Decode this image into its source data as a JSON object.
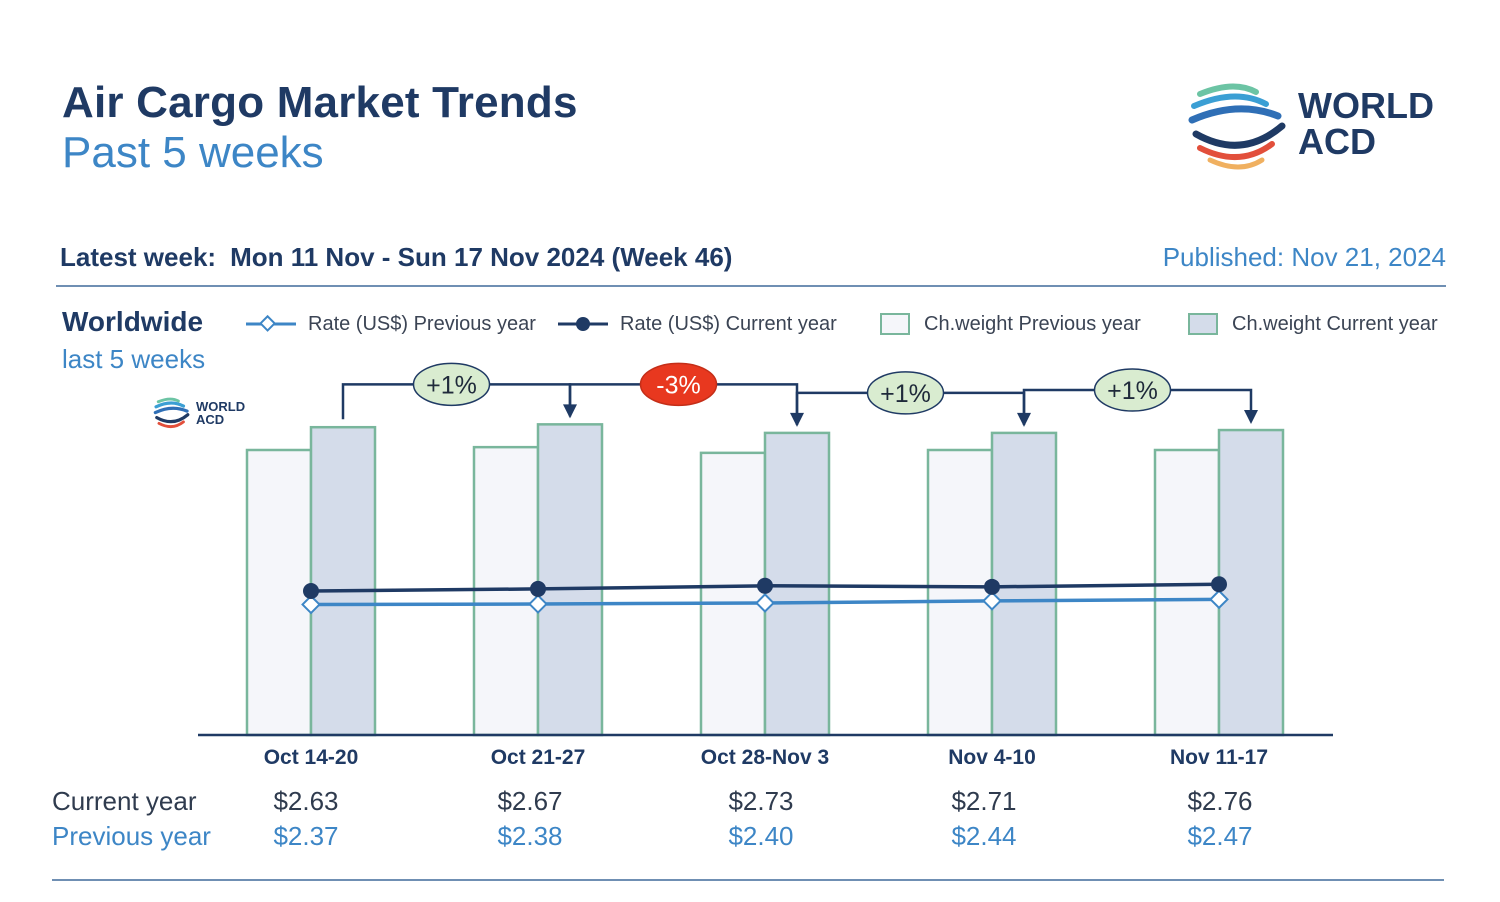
{
  "header": {
    "title": "Air Cargo Market Trends",
    "subtitle": "Past 5 weeks",
    "logo_text_line1": "WORLD",
    "logo_text_line2": "ACD"
  },
  "week_bar": {
    "latest_label": "Latest week:",
    "latest_range": "Mon 11 Nov - Sun 17 Nov 2024 (Week 46)",
    "published": "Published: Nov 21, 2024"
  },
  "section": {
    "region": "Worldwide",
    "period": "last 5 weeks"
  },
  "legend": {
    "rate_prev": "Rate (US$) Previous year",
    "rate_curr": "Rate (US$) Current year",
    "weight_prev": "Ch.weight Previous year",
    "weight_curr": "Ch.weight Current year"
  },
  "colors": {
    "navy": "#1f3a64",
    "blue": "#3d86c6",
    "bar_border": "#79b69c",
    "bar_prev_fill": "#f5f6fa",
    "bar_curr_fill": "#d4dcea",
    "badge_up": "#d9ecd0",
    "badge_down": "#e8381f"
  },
  "chart_data": {
    "type": "bar",
    "categories": [
      "Oct 14-20",
      "Oct 21-27",
      "Oct 28-Nov 3",
      "Nov 4-10",
      "Nov 11-17"
    ],
    "series": [
      {
        "name": "Ch.weight Previous year",
        "kind": "bar",
        "values": [
          1.0,
          1.01,
          0.99,
          1.0,
          1.0
        ]
      },
      {
        "name": "Ch.weight Current year",
        "kind": "bar",
        "values": [
          1.08,
          1.09,
          1.06,
          1.06,
          1.07
        ]
      },
      {
        "name": "Rate (US$) Current year",
        "kind": "line",
        "values": [
          2.63,
          2.67,
          2.73,
          2.71,
          2.76
        ]
      },
      {
        "name": "Rate (US$) Previous year",
        "kind": "line",
        "values": [
          2.37,
          2.38,
          2.4,
          2.44,
          2.47
        ]
      }
    ],
    "week_changes": [
      {
        "from": "Oct 14-20",
        "to": "Oct 21-27",
        "label": "+1%",
        "direction": "up"
      },
      {
        "from": "Oct 21-27",
        "to": "Oct 28-Nov 3",
        "label": "-3%",
        "direction": "down"
      },
      {
        "from": "Oct 28-Nov 3",
        "to": "Nov 4-10",
        "label": "+1%",
        "direction": "up"
      },
      {
        "from": "Nov 4-10",
        "to": "Nov 11-17",
        "label": "+1%",
        "direction": "up"
      }
    ],
    "table": {
      "current_label": "Current year",
      "previous_label": "Previous year",
      "current": [
        "$2.63",
        "$2.67",
        "$2.73",
        "$2.71",
        "$2.76"
      ],
      "previous": [
        "$2.37",
        "$2.38",
        "$2.40",
        "$2.44",
        "$2.47"
      ]
    }
  }
}
